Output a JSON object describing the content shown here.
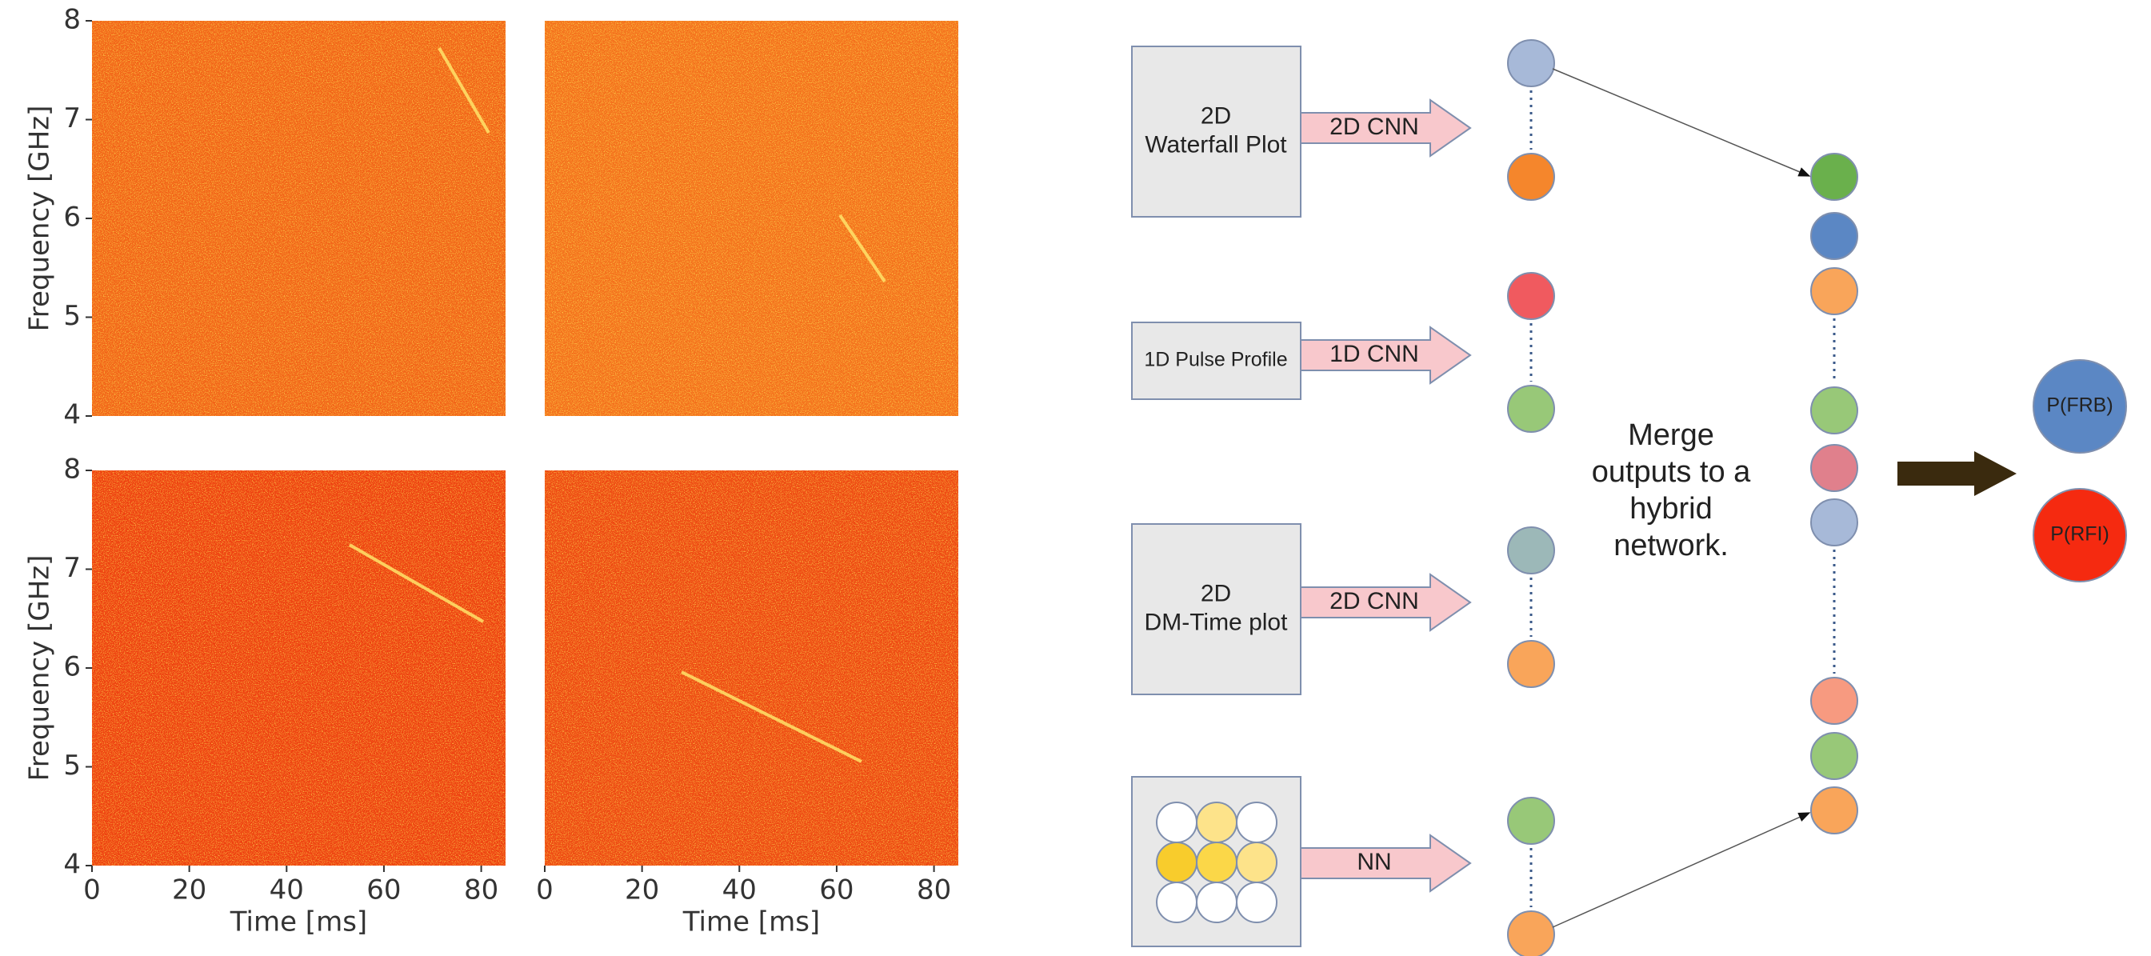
{
  "panels": {
    "xlabel": "Time [ms]",
    "ylabel": "Frequency [GHz]",
    "xlim": [
      0,
      85
    ],
    "ylim": [
      4,
      8
    ],
    "xticks": [
      0,
      20,
      40,
      60,
      80
    ],
    "yticks": [
      4,
      5,
      6,
      7,
      8
    ]
  },
  "inputs": [
    {
      "label": [
        "2D",
        "Waterfall Plot"
      ],
      "arrow": "2D CNN"
    },
    {
      "label": [
        "1D Pulse Profile"
      ],
      "arrow": "1D CNN"
    },
    {
      "label": [
        "2D",
        "DM-Time plot"
      ],
      "arrow": "2D CNN"
    },
    {
      "arrow": "NN"
    }
  ],
  "merge_text": [
    "Merge",
    "outputs to a",
    "hybrid",
    "network."
  ],
  "outputs": [
    "P(FRB)",
    "P(RFI)"
  ]
}
